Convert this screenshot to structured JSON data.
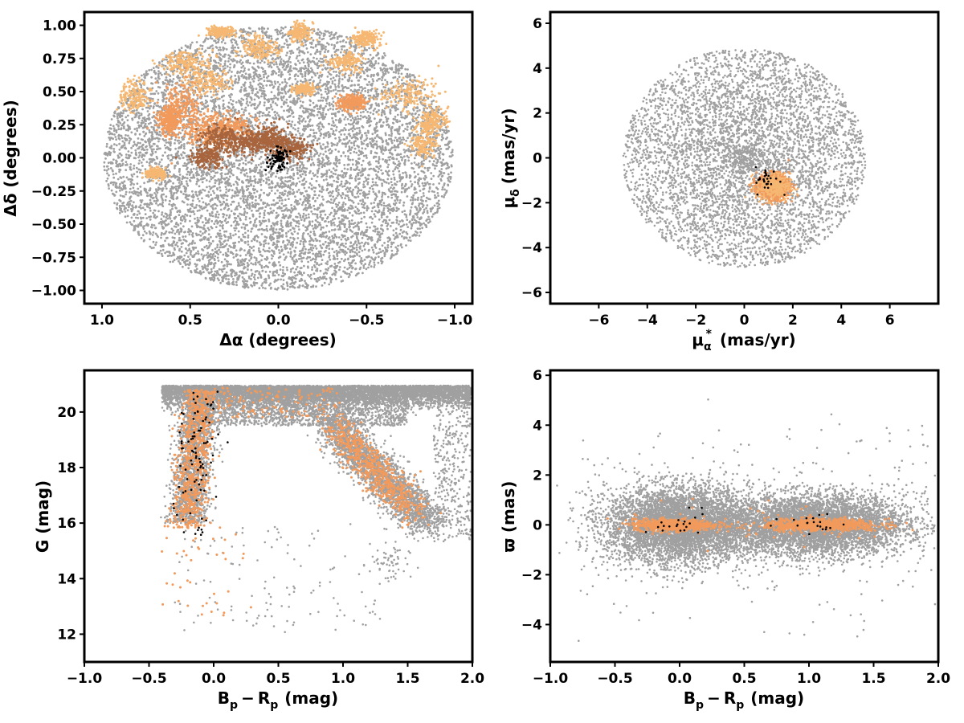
{
  "colors": {
    "field": "#a0a0a0",
    "member_light": "#f5b771",
    "member_orange": "#f29a5c",
    "member_brown": "#a8643c",
    "core": "#000000"
  },
  "chart_data": [
    {
      "id": "sky",
      "type": "scatter",
      "xlabel": "Δα (degrees)",
      "ylabel": "Δδ (degrees)",
      "xlim": [
        1.1,
        -1.1
      ],
      "ylim": [
        -1.1,
        1.1
      ],
      "x_inverted": true,
      "xticks": [
        1.0,
        0.5,
        0.0,
        -0.5,
        -1.0
      ],
      "xtick_labels": [
        "1.0",
        "0.5",
        "0.0",
        "−0.5",
        "−1.0"
      ],
      "yticks": [
        1.0,
        0.75,
        0.5,
        0.25,
        0.0,
        -0.25,
        -0.5,
        -0.75,
        -1.0
      ],
      "ytick_labels": [
        "1.00",
        "0.75",
        "0.50",
        "0.25",
        "0.00",
        "−0.25",
        "−0.50",
        "−0.75",
        "−1.00"
      ],
      "grid": false,
      "series": [
        {
          "color": "#a0a0a0",
          "distribution": "uniform disk",
          "center": [
            0,
            0
          ],
          "radius_x": 0.99,
          "radius_y": 1.0
        },
        {
          "color": "#f5b771",
          "distribution": "clumps",
          "clumps": [
            [
              0.52,
              0.72,
              0.07,
              0.04
            ],
            [
              0.4,
              0.58,
              0.06,
              0.05
            ],
            [
              0.82,
              0.47,
              0.04,
              0.06
            ],
            [
              0.33,
              0.95,
              0.04,
              0.02
            ],
            [
              0.1,
              0.82,
              0.05,
              0.05
            ],
            [
              -0.12,
              0.95,
              0.03,
              0.04
            ],
            [
              -0.38,
              0.73,
              0.05,
              0.04
            ],
            [
              -0.5,
              0.9,
              0.04,
              0.03
            ],
            [
              -0.75,
              0.48,
              0.08,
              0.06
            ],
            [
              -0.88,
              0.28,
              0.04,
              0.05
            ],
            [
              -0.82,
              0.12,
              0.04,
              0.06
            ],
            [
              -0.15,
              0.52,
              0.03,
              0.02
            ],
            [
              0.7,
              -0.12,
              0.03,
              0.02
            ]
          ]
        },
        {
          "color": "#f29a5c",
          "distribution": "clumps",
          "clumps": [
            [
              0.55,
              0.38,
              0.06,
              0.09
            ],
            [
              0.4,
              0.2,
              0.08,
              0.08
            ],
            [
              0.28,
              0.22,
              0.07,
              0.05
            ],
            [
              0.62,
              0.28,
              0.03,
              0.05
            ],
            [
              -0.42,
              0.42,
              0.04,
              0.03
            ]
          ]
        },
        {
          "color": "#a8643c",
          "distribution": "clumps",
          "clumps": [
            [
              0.32,
              0.15,
              0.06,
              0.05
            ],
            [
              0.17,
              0.12,
              0.06,
              0.04
            ],
            [
              0.05,
              0.15,
              0.05,
              0.05
            ],
            [
              -0.07,
              0.07,
              0.05,
              0.04
            ],
            [
              0.4,
              0.0,
              0.05,
              0.04
            ]
          ]
        },
        {
          "color": "#000000",
          "distribution": "gaussian",
          "center": [
            0.0,
            -0.01
          ],
          "sigma": [
            0.03,
            0.04
          ],
          "count": 80
        }
      ]
    },
    {
      "id": "pm",
      "type": "scatter",
      "xlabel": "μα* (mas/yr)",
      "xlabel_main": "μ",
      "xlabel_sub": "α",
      "xlabel_sup": "*",
      "xlabel_unit": "(mas/yr)",
      "ylabel": "μδ (mas/yr)",
      "ylabel_main": "μ",
      "ylabel_sub": "δ",
      "ylabel_unit": "(mas/yr)",
      "xlim": [
        -8,
        8
      ],
      "ylim": [
        -6.5,
        6.5
      ],
      "xticks": [
        -6,
        -4,
        -2,
        0,
        2,
        4,
        6
      ],
      "xtick_labels": [
        "−6",
        "−4",
        "−2",
        "0",
        "2",
        "4",
        "6"
      ],
      "yticks": [
        6,
        4,
        2,
        0,
        -2,
        -4,
        -6
      ],
      "ytick_labels": [
        "6",
        "4",
        "2",
        "0",
        "−2",
        "−4",
        "−6"
      ],
      "grid": false,
      "series": [
        {
          "color": "#a0a0a0",
          "distribution": "disk, concentrated",
          "center": [
            0,
            0
          ],
          "radius": 5.0
        },
        {
          "color": "#f29a5c",
          "distribution": "gaussian",
          "center": [
            1.2,
            -1.3
          ],
          "sigma": [
            0.35,
            0.3
          ]
        },
        {
          "color": "#000000",
          "distribution": "gaussian",
          "center": [
            1.0,
            -1.0
          ],
          "sigma": [
            0.3,
            0.3
          ],
          "count": 30
        }
      ]
    },
    {
      "id": "cmd",
      "type": "scatter",
      "xlabel": "Bp − Rp (mag)",
      "xlabel_b": "B",
      "xlabel_b_sub": "p",
      "xlabel_minus": "−",
      "xlabel_r": "R",
      "xlabel_r_sub": "p",
      "xlabel_unit": "(mag)",
      "ylabel": "G (mag)",
      "xlim": [
        -1.0,
        2.0
      ],
      "ylim": [
        11.0,
        21.5
      ],
      "y_inverted": false,
      "xticks": [
        -1.0,
        -0.5,
        0.0,
        0.5,
        1.0,
        1.5,
        2.0
      ],
      "xtick_labels": [
        "−1.0",
        "−0.5",
        "0.0",
        "0.5",
        "1.0",
        "1.5",
        "2.0"
      ],
      "yticks": [
        12,
        14,
        16,
        18,
        20
      ],
      "ytick_labels": [
        "12",
        "14",
        "16",
        "18",
        "20"
      ],
      "grid": false,
      "series": [
        {
          "color": "#a0a0a0",
          "distribution": "field CMD: dense faint band near G≈20.5, blue branch near Bp−Rp≈−0.2 and red branch near Bp−Rp≈1.0–1.6"
        },
        {
          "color": "#f29a5c",
          "distribution": "members along blue sequence and red clump"
        },
        {
          "color": "#000000",
          "distribution": "core members",
          "count": 90
        }
      ]
    },
    {
      "id": "plx",
      "type": "scatter",
      "xlabel": "Bp − Rp (mag)",
      "xlabel_b": "B",
      "xlabel_b_sub": "p",
      "xlabel_minus": "−",
      "xlabel_r": "R",
      "xlabel_r_sub": "p",
      "xlabel_unit": "(mag)",
      "ylabel": "ϖ (mas)",
      "xlim": [
        -1.0,
        2.0
      ],
      "ylim": [
        -5.5,
        6.2
      ],
      "xticks": [
        -1.0,
        -0.5,
        0.0,
        0.5,
        1.0,
        1.5,
        2.0
      ],
      "xtick_labels": [
        "−1.0",
        "−0.5",
        "0.0",
        "0.5",
        "1.0",
        "1.5",
        "2.0"
      ],
      "yticks": [
        6,
        4,
        2,
        0,
        -2,
        -4
      ],
      "ytick_labels": [
        "6",
        "4",
        "2",
        "0",
        "−2",
        "−4"
      ],
      "grid": false,
      "series": [
        {
          "color": "#a0a0a0",
          "distribution": "two broad lobes around ϖ≈0 at Bp−Rp≈0 and ≈1"
        },
        {
          "color": "#f29a5c",
          "distribution": "tight band at ϖ≈0"
        },
        {
          "color": "#000000",
          "distribution": "core members",
          "count": 40
        }
      ]
    }
  ]
}
